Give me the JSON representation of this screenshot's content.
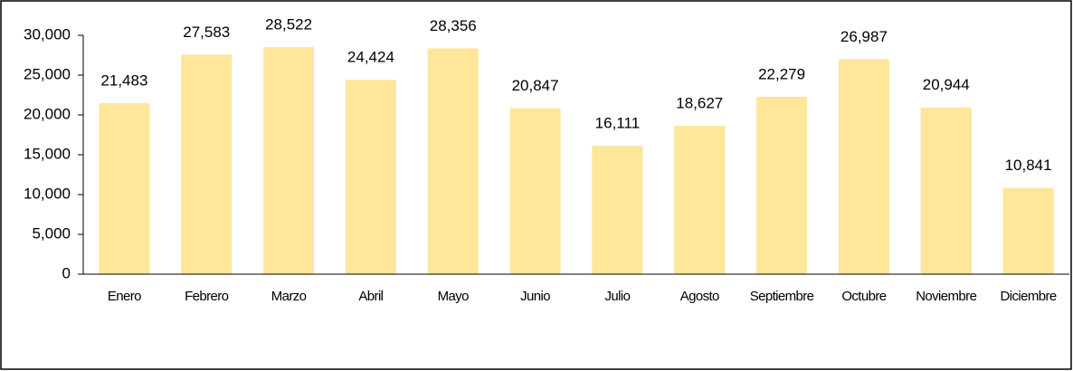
{
  "chart_data": {
    "type": "bar",
    "categories": [
      "Enero",
      "Febrero",
      "Marzo",
      "Abril",
      "Mayo",
      "Junio",
      "Julio",
      "Agosto",
      "Septiembre",
      "Octubre",
      "Noviembre",
      "Diciembre"
    ],
    "values": [
      21483,
      27583,
      28522,
      24424,
      28356,
      20847,
      16111,
      18627,
      22279,
      26987,
      20944,
      10841
    ],
    "value_labels": [
      "21,483",
      "27,583",
      "28,522",
      "24,424",
      "28,356",
      "20,847",
      "16,111",
      "18,627",
      "22,279",
      "26,987",
      "20,944",
      "10,841"
    ],
    "color": "#ffe699",
    "ylim": [
      0,
      30000
    ],
    "yticks": [
      0,
      {
        "value": 5000,
        "label": "5,000"
      },
      {
        "value": 10000,
        "label": "10,000"
      },
      {
        "value": 15000,
        "label": "15,000"
      },
      {
        "value": 20000,
        "label": "20,000"
      },
      {
        "value": 25000,
        "label": "25,000"
      },
      {
        "value": 30000,
        "label": "30,000"
      }
    ],
    "grid": false
  }
}
